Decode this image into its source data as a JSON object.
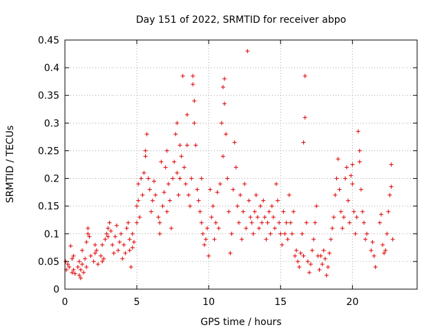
{
  "chart_data": {
    "type": "scatter",
    "title": "Day 151 of 2022, SRMTID for receiver abpo",
    "xlabel": "GPS time / hours",
    "ylabel": "SRMTID / TECUs",
    "xlim": [
      0,
      24.5
    ],
    "ylim": [
      0,
      0.45
    ],
    "xticks": [
      0,
      5,
      10,
      15,
      20
    ],
    "xtick_labels": [
      "0",
      "5",
      "10",
      "15",
      "20"
    ],
    "yticks": [
      0,
      0.05,
      0.1,
      0.15,
      0.2,
      0.25,
      0.3,
      0.35,
      0.4,
      0.45
    ],
    "ytick_labels": [
      "0",
      "0.05",
      "0.1",
      "0.15",
      "0.2",
      "0.25",
      "0.3",
      "0.35",
      "0.4",
      "0.45"
    ],
    "grid": true,
    "marker": "+",
    "color": "#e01010",
    "series": [
      {
        "name": "SRMTID",
        "points": [
          [
            0.05,
            0.05
          ],
          [
            0.1,
            0.035
          ],
          [
            0.2,
            0.045
          ],
          [
            0.3,
            0.04
          ],
          [
            0.4,
            0.078
          ],
          [
            0.5,
            0.03
          ],
          [
            0.5,
            0.055
          ],
          [
            0.6,
            0.035
          ],
          [
            0.6,
            0.06
          ],
          [
            0.7,
            0.028
          ],
          [
            0.9,
            0.04
          ],
          [
            1.0,
            0.025
          ],
          [
            1.0,
            0.05
          ],
          [
            1.1,
            0.02
          ],
          [
            1.1,
            0.035
          ],
          [
            1.2,
            0.045
          ],
          [
            1.2,
            0.07
          ],
          [
            1.3,
            0.03
          ],
          [
            1.4,
            0.055
          ],
          [
            1.5,
            0.04
          ],
          [
            1.5,
            0.085
          ],
          [
            1.6,
            0.1
          ],
          [
            1.6,
            0.11
          ],
          [
            1.7,
            0.095
          ],
          [
            1.8,
            0.06
          ],
          [
            2.0,
            0.05
          ],
          [
            2.1,
            0.065
          ],
          [
            2.1,
            0.08
          ],
          [
            2.2,
            0.07
          ],
          [
            2.3,
            0.045
          ],
          [
            2.5,
            0.06
          ],
          [
            2.6,
            0.05
          ],
          [
            2.6,
            0.08
          ],
          [
            2.7,
            0.055
          ],
          [
            2.8,
            0.09
          ],
          [
            2.9,
            0.1
          ],
          [
            3.0,
            0.11
          ],
          [
            3.0,
            0.095
          ],
          [
            3.1,
            0.12
          ],
          [
            3.2,
            0.105
          ],
          [
            3.3,
            0.08
          ],
          [
            3.4,
            0.065
          ],
          [
            3.5,
            0.095
          ],
          [
            3.6,
            0.115
          ],
          [
            3.7,
            0.07
          ],
          [
            3.8,
            0.085
          ],
          [
            3.9,
            0.1
          ],
          [
            4.0,
            0.055
          ],
          [
            4.1,
            0.08
          ],
          [
            4.2,
            0.065
          ],
          [
            4.3,
            0.11
          ],
          [
            4.4,
            0.12
          ],
          [
            4.5,
            0.09
          ],
          [
            4.5,
            0.07
          ],
          [
            4.6,
            0.04
          ],
          [
            4.7,
            0.075
          ],
          [
            4.7,
            0.1
          ],
          [
            4.8,
            0.085
          ],
          [
            5.0,
            0.12
          ],
          [
            5.0,
            0.15
          ],
          [
            5.1,
            0.16
          ],
          [
            5.1,
            0.19
          ],
          [
            5.2,
            0.13
          ],
          [
            5.3,
            0.2
          ],
          [
            5.4,
            0.17
          ],
          [
            5.5,
            0.21
          ],
          [
            5.6,
            0.24
          ],
          [
            5.6,
            0.25
          ],
          [
            5.7,
            0.28
          ],
          [
            5.8,
            0.2
          ],
          [
            5.9,
            0.18
          ],
          [
            6.0,
            0.14
          ],
          [
            6.1,
            0.16
          ],
          [
            6.2,
            0.195
          ],
          [
            6.3,
            0.17
          ],
          [
            6.5,
            0.13
          ],
          [
            6.6,
            0.12
          ],
          [
            6.6,
            0.1
          ],
          [
            6.7,
            0.23
          ],
          [
            6.8,
            0.15
          ],
          [
            6.9,
            0.175
          ],
          [
            7.0,
            0.22
          ],
          [
            7.1,
            0.25
          ],
          [
            7.1,
            0.14
          ],
          [
            7.2,
            0.19
          ],
          [
            7.3,
            0.16
          ],
          [
            7.4,
            0.11
          ],
          [
            7.5,
            0.2
          ],
          [
            7.6,
            0.23
          ],
          [
            7.7,
            0.28
          ],
          [
            7.8,
            0.3
          ],
          [
            7.8,
            0.21
          ],
          [
            7.9,
            0.17
          ],
          [
            8.0,
            0.26
          ],
          [
            8.0,
            0.2
          ],
          [
            8.1,
            0.24
          ],
          [
            8.2,
            0.385
          ],
          [
            8.3,
            0.22
          ],
          [
            8.4,
            0.19
          ],
          [
            8.5,
            0.315
          ],
          [
            8.5,
            0.26
          ],
          [
            8.6,
            0.17
          ],
          [
            8.7,
            0.15
          ],
          [
            8.8,
            0.2
          ],
          [
            8.9,
            0.37
          ],
          [
            8.9,
            0.385
          ],
          [
            9.0,
            0.34
          ],
          [
            9.0,
            0.3
          ],
          [
            9.1,
            0.26
          ],
          [
            9.2,
            0.18
          ],
          [
            9.3,
            0.16
          ],
          [
            9.4,
            0.14
          ],
          [
            9.5,
            0.12
          ],
          [
            9.5,
            0.2
          ],
          [
            9.6,
            0.1
          ],
          [
            9.7,
            0.08
          ],
          [
            9.8,
            0.09
          ],
          [
            9.9,
            0.11
          ],
          [
            10.0,
            0.06
          ],
          [
            10.1,
            0.18
          ],
          [
            10.2,
            0.13
          ],
          [
            10.3,
            0.15
          ],
          [
            10.4,
            0.09
          ],
          [
            10.5,
            0.12
          ],
          [
            10.6,
            0.175
          ],
          [
            10.7,
            0.11
          ],
          [
            10.8,
            0.19
          ],
          [
            10.9,
            0.3
          ],
          [
            11.0,
            0.24
          ],
          [
            11.0,
            0.365
          ],
          [
            11.1,
            0.38
          ],
          [
            11.1,
            0.335
          ],
          [
            11.2,
            0.28
          ],
          [
            11.3,
            0.2
          ],
          [
            11.4,
            0.14
          ],
          [
            11.5,
            0.065
          ],
          [
            11.6,
            0.1
          ],
          [
            11.7,
            0.18
          ],
          [
            11.8,
            0.265
          ],
          [
            11.9,
            0.22
          ],
          [
            12.0,
            0.15
          ],
          [
            12.1,
            0.12
          ],
          [
            12.2,
            0.17
          ],
          [
            12.3,
            0.09
          ],
          [
            12.4,
            0.14
          ],
          [
            12.5,
            0.19
          ],
          [
            12.6,
            0.11
          ],
          [
            12.7,
            0.43
          ],
          [
            12.8,
            0.16
          ],
          [
            12.9,
            0.13
          ],
          [
            13.0,
            0.12
          ],
          [
            13.1,
            0.1
          ],
          [
            13.2,
            0.14
          ],
          [
            13.3,
            0.17
          ],
          [
            13.4,
            0.13
          ],
          [
            13.5,
            0.11
          ],
          [
            13.6,
            0.15
          ],
          [
            13.7,
            0.12
          ],
          [
            13.8,
            0.16
          ],
          [
            13.9,
            0.13
          ],
          [
            14.0,
            0.09
          ],
          [
            14.1,
            0.12
          ],
          [
            14.2,
            0.14
          ],
          [
            14.3,
            0.1
          ],
          [
            14.4,
            0.15
          ],
          [
            14.5,
            0.13
          ],
          [
            14.6,
            0.11
          ],
          [
            14.7,
            0.19
          ],
          [
            14.8,
            0.16
          ],
          [
            14.9,
            0.12
          ],
          [
            15.0,
            0.1
          ],
          [
            15.1,
            0.08
          ],
          [
            15.2,
            0.14
          ],
          [
            15.3,
            0.1
          ],
          [
            15.4,
            0.12
          ],
          [
            15.5,
            0.09
          ],
          [
            15.6,
            0.17
          ],
          [
            15.7,
            0.12
          ],
          [
            15.8,
            0.1
          ],
          [
            15.9,
            0.14
          ],
          [
            16.0,
            0.06
          ],
          [
            16.1,
            0.07
          ],
          [
            16.2,
            0.05
          ],
          [
            16.3,
            0.04
          ],
          [
            16.4,
            0.065
          ],
          [
            16.5,
            0.1
          ],
          [
            16.6,
            0.06
          ],
          [
            16.7,
            0.385
          ],
          [
            16.7,
            0.31
          ],
          [
            16.6,
            0.265
          ],
          [
            16.8,
            0.12
          ],
          [
            16.9,
            0.05
          ],
          [
            17.0,
            0.03
          ],
          [
            17.1,
            0.045
          ],
          [
            17.2,
            0.07
          ],
          [
            17.3,
            0.09
          ],
          [
            17.4,
            0.12
          ],
          [
            17.5,
            0.15
          ],
          [
            17.6,
            0.06
          ],
          [
            17.7,
            0.035
          ],
          [
            17.8,
            0.06
          ],
          [
            17.9,
            0.045
          ],
          [
            18.0,
            0.07
          ],
          [
            18.1,
            0.055
          ],
          [
            18.2,
            0.025
          ],
          [
            18.3,
            0.04
          ],
          [
            18.4,
            0.065
          ],
          [
            18.5,
            0.09
          ],
          [
            18.6,
            0.11
          ],
          [
            18.7,
            0.13
          ],
          [
            18.8,
            0.17
          ],
          [
            18.9,
            0.2
          ],
          [
            19.0,
            0.235
          ],
          [
            19.1,
            0.18
          ],
          [
            19.2,
            0.14
          ],
          [
            19.3,
            0.11
          ],
          [
            19.4,
            0.13
          ],
          [
            19.5,
            0.2
          ],
          [
            19.6,
            0.22
          ],
          [
            19.7,
            0.16
          ],
          [
            19.8,
            0.12
          ],
          [
            19.9,
            0.205
          ],
          [
            20.0,
            0.225
          ],
          [
            20.0,
            0.19
          ],
          [
            20.1,
            0.14
          ],
          [
            20.2,
            0.1
          ],
          [
            20.3,
            0.13
          ],
          [
            20.4,
            0.285
          ],
          [
            20.5,
            0.25
          ],
          [
            20.5,
            0.23
          ],
          [
            20.6,
            0.18
          ],
          [
            20.7,
            0.14
          ],
          [
            20.8,
            0.12
          ],
          [
            20.9,
            0.09
          ],
          [
            21.0,
            0.1
          ],
          [
            21.3,
            0.07
          ],
          [
            21.4,
            0.085
          ],
          [
            21.5,
            0.06
          ],
          [
            21.6,
            0.04
          ],
          [
            21.9,
            0.12
          ],
          [
            22.0,
            0.135
          ],
          [
            22.1,
            0.08
          ],
          [
            22.2,
            0.065
          ],
          [
            22.3,
            0.07
          ],
          [
            22.4,
            0.1
          ],
          [
            22.5,
            0.14
          ],
          [
            22.6,
            0.17
          ],
          [
            22.7,
            0.185
          ],
          [
            22.7,
            0.225
          ],
          [
            22.8,
            0.09
          ]
        ]
      }
    ]
  }
}
